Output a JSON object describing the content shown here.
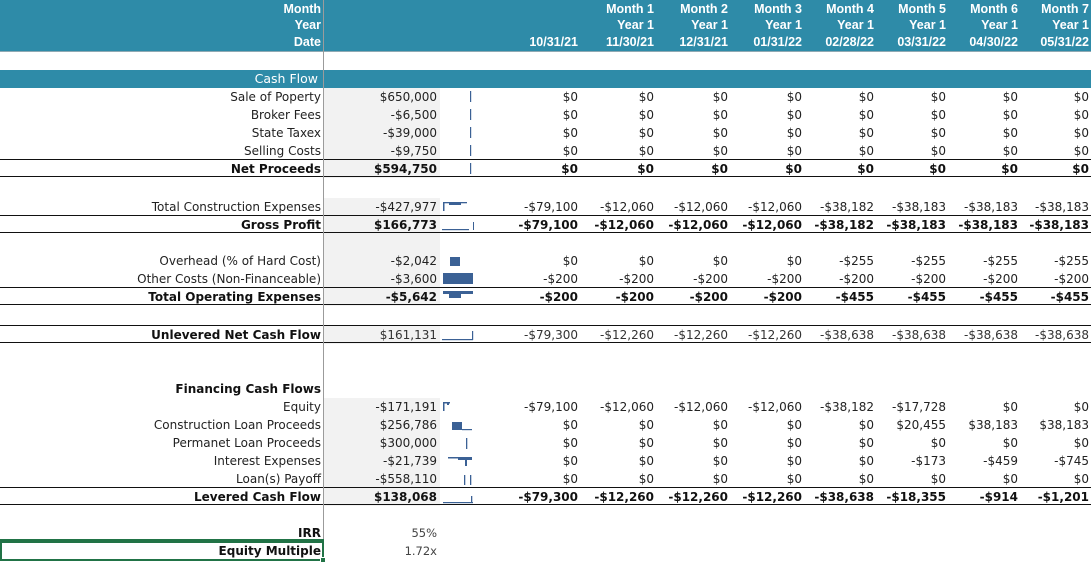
{
  "header": {
    "row_labels": [
      "Month",
      "Year",
      "Date"
    ],
    "columns": [
      {
        "month": "",
        "year": "",
        "date": "10/31/21"
      },
      {
        "month": "Month 1",
        "year": "Year 1",
        "date": "11/30/21"
      },
      {
        "month": "Month 2",
        "year": "Year 1",
        "date": "12/31/21"
      },
      {
        "month": "Month 3",
        "year": "Year 1",
        "date": "01/31/22"
      },
      {
        "month": "Month 4",
        "year": "Year 1",
        "date": "02/28/22"
      },
      {
        "month": "Month 5",
        "year": "Year 1",
        "date": "03/31/22"
      },
      {
        "month": "Month 6",
        "year": "Year 1",
        "date": "04/30/22"
      },
      {
        "month": "Month 7",
        "year": "Year 1",
        "date": "05/31/22"
      }
    ]
  },
  "section_band": {
    "label": "Cash Flow"
  },
  "rows": {
    "sale_of_property": {
      "label": "Sale of Poperty",
      "total": "$650,000",
      "values": [
        "$0",
        "$0",
        "$0",
        "$0",
        "$0",
        "$0",
        "$0",
        "$0"
      ]
    },
    "broker_fees": {
      "label": "Broker Fees",
      "total": "-$6,500",
      "values": [
        "$0",
        "$0",
        "$0",
        "$0",
        "$0",
        "$0",
        "$0",
        "$0"
      ]
    },
    "state_taxes": {
      "label": "State Taxex",
      "total": "-$39,000",
      "values": [
        "$0",
        "$0",
        "$0",
        "$0",
        "$0",
        "$0",
        "$0",
        "$0"
      ]
    },
    "selling_costs": {
      "label": "Selling Costs",
      "total": "-$9,750",
      "values": [
        "$0",
        "$0",
        "$0",
        "$0",
        "$0",
        "$0",
        "$0",
        "$0"
      ]
    },
    "net_proceeds": {
      "label": "Net Proceeds",
      "total": "$594,750",
      "values": [
        "$0",
        "$0",
        "$0",
        "$0",
        "$0",
        "$0",
        "$0",
        "$0"
      ]
    },
    "total_construction": {
      "label": "Total Construction Expenses",
      "total": "-$427,977",
      "values": [
        "-$79,100",
        "-$12,060",
        "-$12,060",
        "-$12,060",
        "-$38,182",
        "-$38,183",
        "-$38,183",
        "-$38,183"
      ]
    },
    "gross_profit": {
      "label": "Gross Profit",
      "total": "$166,773",
      "values": [
        "-$79,100",
        "-$12,060",
        "-$12,060",
        "-$12,060",
        "-$38,182",
        "-$38,183",
        "-$38,183",
        "-$38,183"
      ]
    },
    "overhead": {
      "label": "Overhead (% of Hard Cost)",
      "total": "-$2,042",
      "values": [
        "$0",
        "$0",
        "$0",
        "$0",
        "-$255",
        "-$255",
        "-$255",
        "-$255"
      ]
    },
    "other_costs": {
      "label": "Other Costs (Non-Financeable)",
      "total": "-$3,600",
      "values": [
        "-$200",
        "-$200",
        "-$200",
        "-$200",
        "-$200",
        "-$200",
        "-$200",
        "-$200"
      ]
    },
    "total_opex": {
      "label": "Total Operating Expenses",
      "total": "-$5,642",
      "values": [
        "-$200",
        "-$200",
        "-$200",
        "-$200",
        "-$455",
        "-$455",
        "-$455",
        "-$455"
      ]
    },
    "unlevered": {
      "label": "Unlevered Net Cash Flow",
      "total": "$161,131",
      "values": [
        "-$79,300",
        "-$12,260",
        "-$12,260",
        "-$12,260",
        "-$38,638",
        "-$38,638",
        "-$38,638",
        "-$38,638"
      ]
    },
    "financing_header": {
      "label": "Financing Cash Flows"
    },
    "equity": {
      "label": "Equity",
      "total": "-$171,191",
      "values": [
        "-$79,100",
        "-$12,060",
        "-$12,060",
        "-$12,060",
        "-$38,182",
        "-$17,728",
        "$0",
        "$0"
      ]
    },
    "construction_loan": {
      "label": "Construction Loan Proceeds",
      "total": "$256,786",
      "values": [
        "$0",
        "$0",
        "$0",
        "$0",
        "$0",
        "$20,455",
        "$38,183",
        "$38,183"
      ]
    },
    "permanent_loan": {
      "label": "Permanet Loan Proceeds",
      "total": "$300,000",
      "values": [
        "$0",
        "$0",
        "$0",
        "$0",
        "$0",
        "$0",
        "$0",
        "$0"
      ]
    },
    "interest": {
      "label": "Interest Expenses",
      "total": "-$21,739",
      "values": [
        "$0",
        "$0",
        "$0",
        "$0",
        "$0",
        "-$173",
        "-$459",
        "-$745"
      ]
    },
    "loan_payoff": {
      "label": "Loan(s) Payoff",
      "total": "-$558,110",
      "values": [
        "$0",
        "$0",
        "$0",
        "$0",
        "$0",
        "$0",
        "$0",
        "$0"
      ]
    },
    "levered": {
      "label": "Levered Cash Flow",
      "total": "$138,068",
      "values": [
        "-$79,300",
        "-$12,260",
        "-$12,260",
        "-$12,260",
        "-$38,638",
        "-$18,355",
        "-$914",
        "-$1,201"
      ]
    }
  },
  "metrics": {
    "irr": {
      "label": "IRR",
      "value": "55%"
    },
    "equity_multiple": {
      "label": "Equity Multiple",
      "value": "1.72x"
    }
  },
  "colors": {
    "header_band": "#2E8BA8",
    "total_column_shade": "#F2F2F2",
    "sparkline": "#3B6195",
    "selection": "#217346"
  },
  "selected_cell": "Equity Multiple"
}
